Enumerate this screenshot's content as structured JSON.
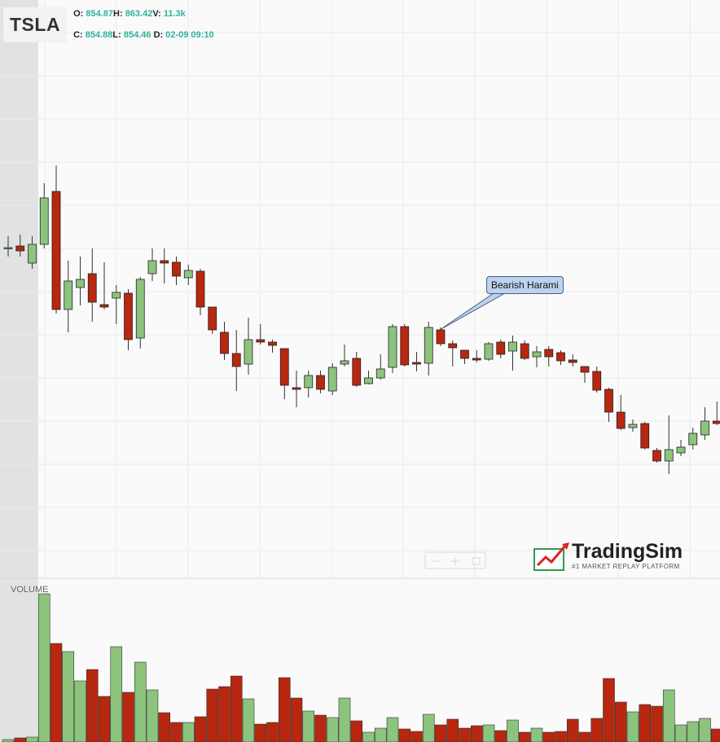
{
  "header": {
    "symbol": "TSLA",
    "o_label": "O:",
    "o": "854.87",
    "h_label": "H:",
    "h": "863.42",
    "v_label": "V:",
    "v": "11.3k",
    "c_label": "C:",
    "c": "854.88",
    "l_label": "L:",
    "l": "854.46",
    "d_label": "D:",
    "d": "02-09 09:10"
  },
  "logo": {
    "name": "TradingSim",
    "tagline": "#1 MARKET REPLAY PLATFORM"
  },
  "chart_data": {
    "type": "candlestick",
    "volume_label": "VOLUME",
    "annotations": [
      {
        "text": "Bearish Harami"
      }
    ],
    "up_color": "#8cc47e",
    "down_color": "#b8270f",
    "ylim": [
      829,
      900
    ],
    "volume_ylim": [
      0,
      18.2
    ],
    "open": [
      869.5,
      869.8,
      867.7,
      870,
      876.5,
      862,
      864.7,
      866.4,
      862.6,
      863.4,
      864,
      858.5,
      866.4,
      868,
      867.8,
      865.9,
      866.7,
      862.3,
      859.2,
      856.6,
      855.3,
      858.3,
      858,
      857.2,
      852.4,
      852.4,
      853.9,
      852,
      855.3,
      856,
      852.9,
      853.6,
      854.9,
      859.9,
      855.5,
      855.4,
      859.5,
      857.8,
      857,
      856,
      855.9,
      858,
      856.9,
      857.8,
      856.2,
      857.1,
      856.7,
      855.8,
      855,
      854.4,
      852.2,
      849.4,
      847.5,
      848,
      844.7,
      843.4,
      844.4,
      845.4,
      846.6,
      848.3
    ],
    "high": [
      871,
      871.2,
      871,
      877.5,
      879.7,
      868,
      868.5,
      869.5,
      867.8,
      865,
      864.5,
      866,
      869.5,
      869.5,
      868.5,
      867.5,
      867,
      862.3,
      860.5,
      859.5,
      861,
      860.2,
      858.3,
      857.2,
      854.5,
      854.5,
      854.5,
      855.4,
      857.7,
      856.8,
      854.5,
      856.5,
      860.2,
      860.2,
      856.8,
      860.5,
      859.8,
      858.2,
      857,
      857,
      858,
      858.3,
      858.8,
      858.2,
      857.5,
      857.5,
      857,
      856.5,
      855,
      855,
      852.4,
      851.5,
      848.5,
      848.2,
      845,
      849,
      846,
      847.5,
      850,
      850.7
    ],
    "low": [
      868.5,
      868.5,
      867,
      869.5,
      861.5,
      859.2,
      862.5,
      860.5,
      862,
      860.2,
      857,
      857.2,
      865.5,
      865.2,
      865,
      865,
      861.3,
      859,
      855.8,
      852,
      854,
      857.7,
      856.7,
      851,
      850,
      851.2,
      851.7,
      851.5,
      855,
      852.5,
      852.8,
      853.4,
      854.2,
      855,
      854.4,
      853.9,
      857.5,
      855,
      855.3,
      855.5,
      855.7,
      856,
      854.5,
      855.8,
      854.9,
      855,
      855.2,
      855,
      853,
      851.8,
      848.2,
      847.2,
      847,
      844.8,
      843.2,
      841.8,
      844,
      844.8,
      846,
      847.8
    ],
    "close": [
      869.6,
      869.2,
      870,
      875.7,
      862,
      865.5,
      865.7,
      862.9,
      862.3,
      864.1,
      858.3,
      865.7,
      868,
      867.7,
      866.1,
      866.8,
      862.3,
      859.5,
      856.6,
      855,
      858.3,
      858,
      857.6,
      852.7,
      852.2,
      853.9,
      852.2,
      854.9,
      855.7,
      852.7,
      853.6,
      854.7,
      859.9,
      855.2,
      855.3,
      859.8,
      857.8,
      857.3,
      856,
      855.8,
      857.8,
      856.5,
      858,
      856,
      856.8,
      856.2,
      855.7,
      855.5,
      854.3,
      852.1,
      849.4,
      847.4,
      847.9,
      845,
      843.4,
      844.8,
      845.1,
      846.8,
      848.3,
      848
    ],
    "volume": [
      0.3,
      0.5,
      0.6,
      18.2,
      12.1,
      11.1,
      7.5,
      8.9,
      5.6,
      11.7,
      6.1,
      9.8,
      6.4,
      3.6,
      2.4,
      2.4,
      3.1,
      6.5,
      6.8,
      8.1,
      5.3,
      2.2,
      2.4,
      7.9,
      5.4,
      3.8,
      3.3,
      3.0,
      5.4,
      2.6,
      1.2,
      1.7,
      3.0,
      1.6,
      1.3,
      3.4,
      2.1,
      2.8,
      1.7,
      2.0,
      2.1,
      1.4,
      2.7,
      1.2,
      1.7,
      1.2,
      1.3,
      2.8,
      1.2,
      2.9,
      7.8,
      4.9,
      3.7,
      4.6,
      4.4,
      6.4,
      2.1,
      2.5,
      2.9,
      1.6
    ]
  }
}
